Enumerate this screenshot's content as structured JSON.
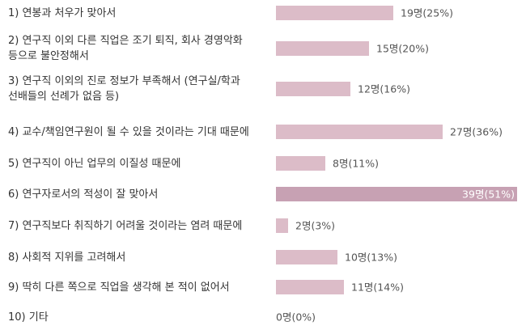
{
  "colors": {
    "bar": "#dcbcc8",
    "bar_highlight": "#c7a1b3",
    "label_outside": "#555555",
    "label_inside": "#ffffff",
    "text": "#333333"
  },
  "chart_data": {
    "type": "bar",
    "orientation": "horizontal",
    "categories": [
      "1) 연봉과 처우가 맞아서",
      "2) 연구직 이외 다른 직업은 조기 퇴직, 회사 경영악화\n등으로 불안정해서",
      "3) 연구직 이외의 진로 정보가 부족해서 (연구실/학과\n선배들의 선례가 없음 등)",
      "4) 교수/책임연구원이 될 수 있을 것이라는 기대 때문에",
      "5) 연구직이 아닌 업무의 이질성 때문에",
      "6) 연구자로서의 적성이 잘 맞아서",
      "7) 연구직보다 취직하기 어려울 것이라는 염려 때문에",
      "8) 사회적 지위를 고려해서",
      "9) 딱히 다른 쪽으로 직업을 생각해 본 적이 없어서",
      "10) 기타"
    ],
    "values": [
      19,
      15,
      12,
      27,
      8,
      39,
      2,
      10,
      11,
      0
    ],
    "percents": [
      25,
      20,
      16,
      36,
      11,
      51,
      3,
      13,
      14,
      0
    ],
    "data_labels": [
      "19명(25%)",
      "15명(20%)",
      "12명(16%)",
      "27명(36%)",
      "8명(11%)",
      "39명(51%)",
      "2명(3%)",
      "10명(13%)",
      "11명(14%)",
      "0명(0%)"
    ],
    "highlight_index": 5,
    "xlim": [
      0,
      39
    ],
    "grid": false,
    "legend": "none"
  }
}
